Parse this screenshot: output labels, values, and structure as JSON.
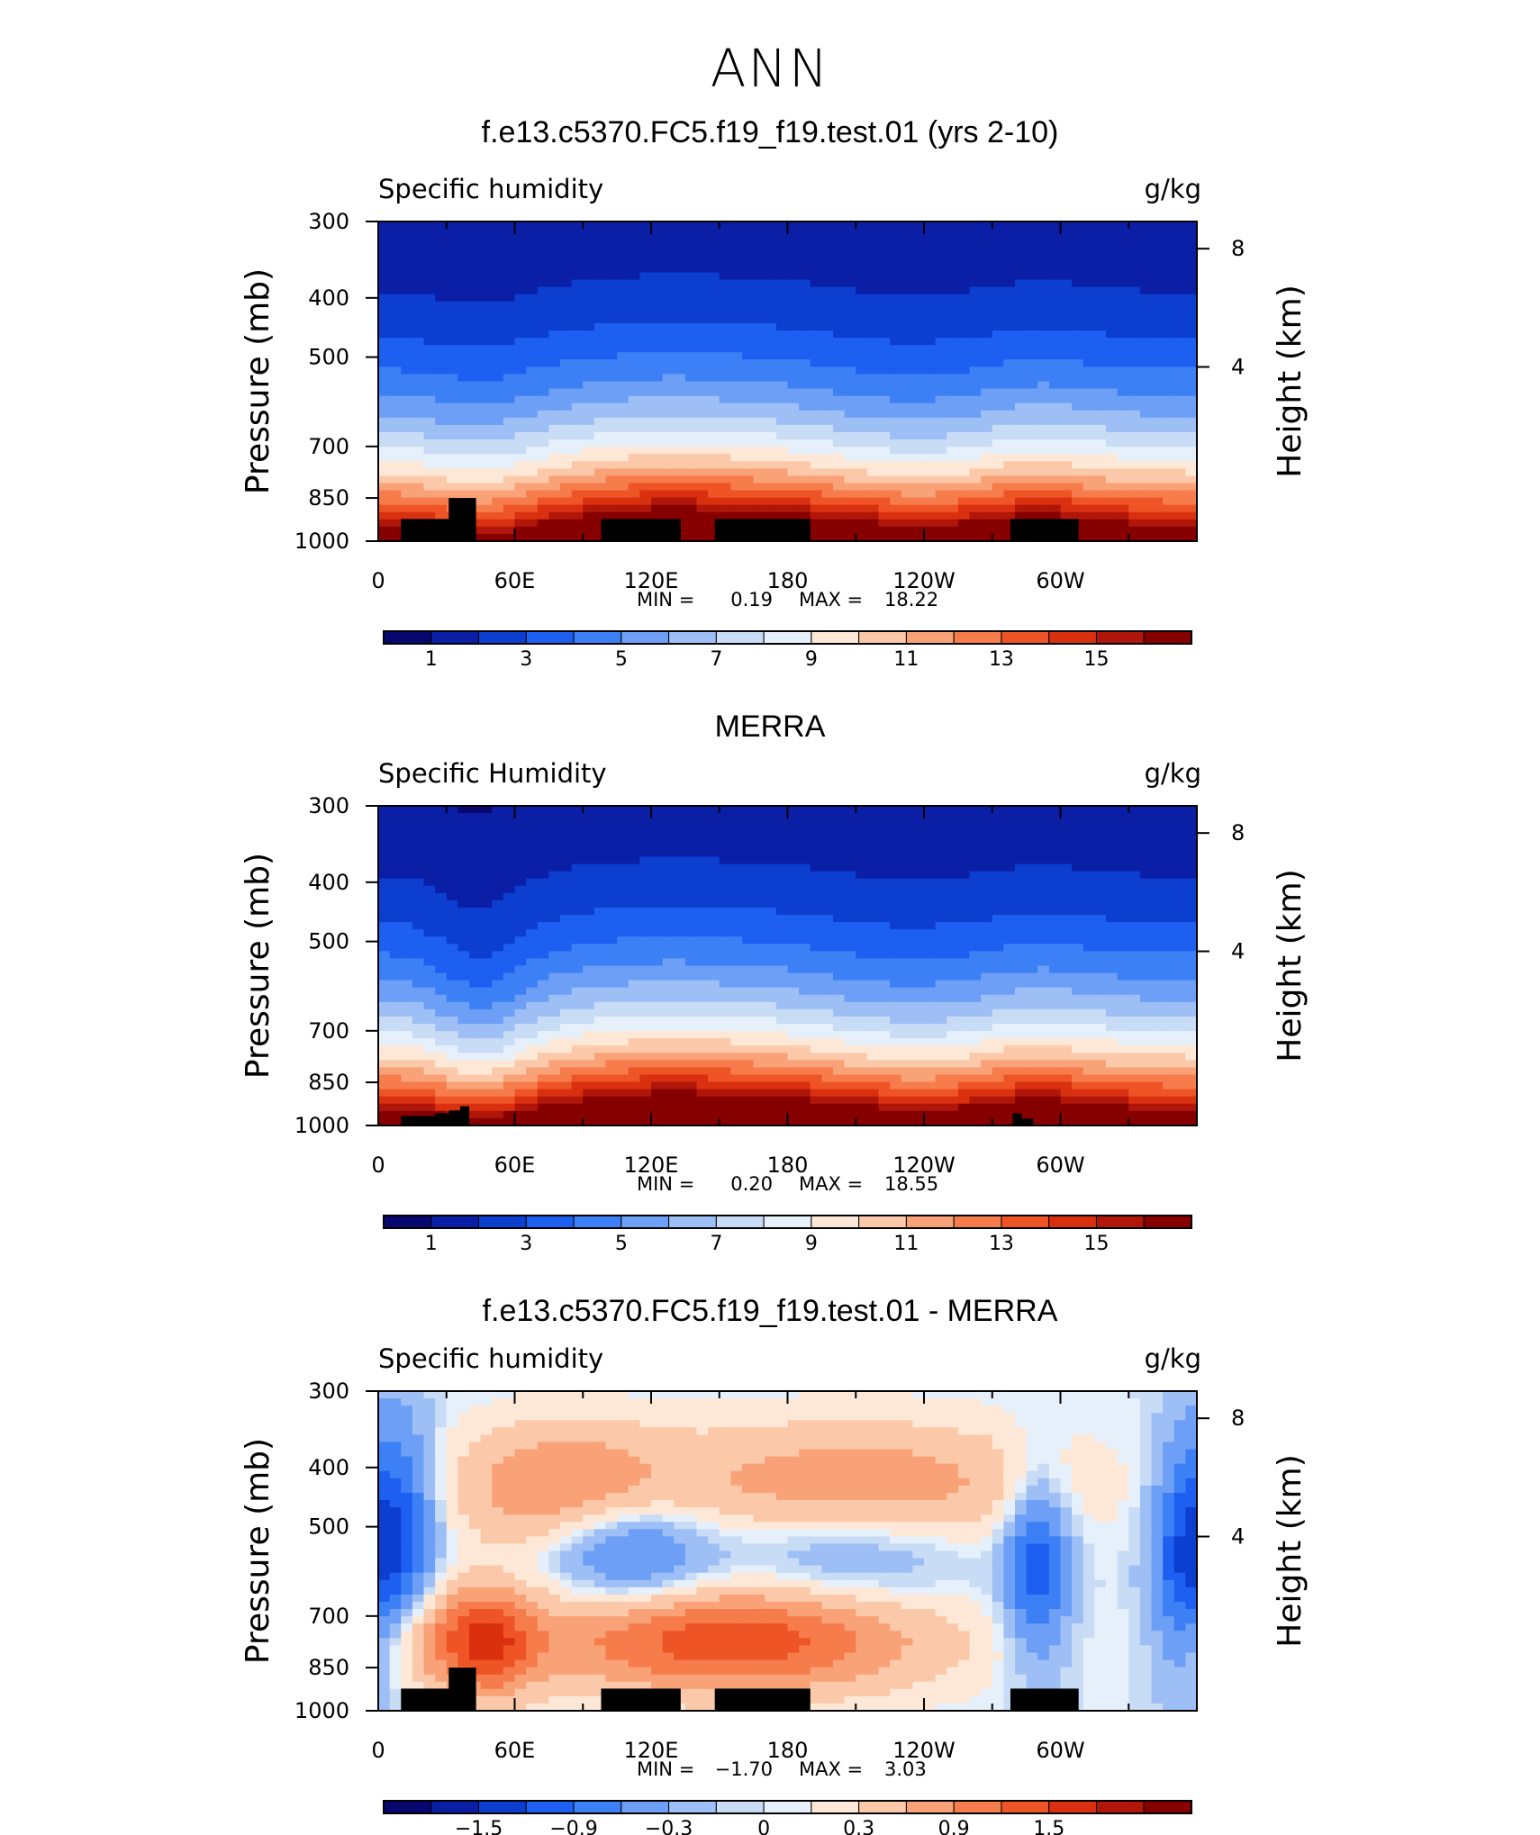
{
  "page": {
    "main_title": "ANN"
  },
  "colors": {
    "palette": [
      "#08066f",
      "#0a1fa6",
      "#0c3ed0",
      "#1d5ff0",
      "#3d80f6",
      "#6c9ff5",
      "#9dbff5",
      "#c8dcf6",
      "#e6f0fb",
      "#fde8d7",
      "#fbc9a9",
      "#f9a277",
      "#f67c4c",
      "#ee5425",
      "#d9300f",
      "#b01609",
      "#860000"
    ],
    "land": "#000000"
  },
  "chart_data": [
    {
      "type": "heatmap",
      "title": "f.e13.c5370.FC5.f19_f19.test.01 (yrs 2-10)",
      "left_label": "Specific humidity",
      "right_label": "g/kg",
      "ylabel": "Pressure (mb)",
      "y2label": "Height (km)",
      "x_ticklabels": [
        "0",
        "60E",
        "120E",
        "180",
        "120W",
        "60W"
      ],
      "y_ticklabels": [
        "300",
        "400",
        "500",
        "700",
        "850",
        "1000"
      ],
      "y2_ticklabels": [
        "8",
        "4"
      ],
      "ylim": [
        1000,
        300
      ],
      "min_label": "MIN =",
      "min_value": "0.19",
      "max_label": "MAX =",
      "max_value": "18.22",
      "colorbar_labels": [
        "1",
        "3",
        "5",
        "7",
        "9",
        "11",
        "13",
        "15"
      ],
      "contour_levels": [
        1,
        2,
        3,
        4,
        5,
        6,
        7,
        8,
        9,
        10,
        11,
        12,
        13,
        14,
        15,
        16
      ],
      "land_blocks": [
        [
          10,
          43,
          920
        ],
        [
          31,
          43,
          850
        ],
        [
          98,
          133,
          920
        ],
        [
          148,
          190,
          920
        ],
        [
          278,
          308,
          920
        ]
      ]
    },
    {
      "type": "heatmap",
      "title": "MERRA",
      "left_label": "Specific Humidity",
      "right_label": "g/kg",
      "ylabel": "Pressure (mb)",
      "y2label": "Height (km)",
      "x_ticklabels": [
        "0",
        "60E",
        "120E",
        "180",
        "120W",
        "60W"
      ],
      "y_ticklabels": [
        "300",
        "400",
        "500",
        "700",
        "850",
        "1000"
      ],
      "y2_ticklabels": [
        "8",
        "4"
      ],
      "ylim": [
        1000,
        300
      ],
      "min_label": "MIN =",
      "min_value": "0.20",
      "max_label": "MAX =",
      "max_value": "18.55",
      "colorbar_labels": [
        "1",
        "3",
        "5",
        "7",
        "9",
        "11",
        "13",
        "15"
      ],
      "contour_levels": [
        1,
        2,
        3,
        4,
        5,
        6,
        7,
        8,
        9,
        10,
        11,
        12,
        13,
        14,
        15,
        16
      ],
      "land_blocks": [
        [
          10,
          25,
          965
        ],
        [
          25,
          31,
          955
        ],
        [
          31,
          36,
          945
        ],
        [
          36,
          40,
          930
        ],
        [
          279,
          283,
          955
        ],
        [
          283,
          288,
          975
        ]
      ]
    },
    {
      "type": "heatmap",
      "title": "f.e13.c5370.FC5.f19_f19.test.01 - MERRA",
      "left_label": "Specific humidity",
      "right_label": "g/kg",
      "ylabel": "Pressure (mb)",
      "y2label": "Height (km)",
      "x_ticklabels": [
        "0",
        "60E",
        "120E",
        "180",
        "120W",
        "60W"
      ],
      "y_ticklabels": [
        "300",
        "400",
        "500",
        "700",
        "850",
        "1000"
      ],
      "y2_ticklabels": [
        "8",
        "4"
      ],
      "ylim": [
        1000,
        300
      ],
      "min_label": "MIN =",
      "min_value": "−1.70",
      "max_label": "MAX =",
      "max_value": "3.03",
      "colorbar_labels": [
        "−1.5",
        "−0.9",
        "−0.3",
        "0",
        "0.3",
        "0.9",
        "1.5"
      ],
      "contour_levels": [
        -1.8,
        -1.5,
        -1.2,
        -0.9,
        -0.6,
        -0.3,
        -0.1,
        0,
        0.1,
        0.3,
        0.6,
        0.9,
        1.2,
        1.5,
        1.8,
        2.1
      ],
      "land_blocks": [
        [
          10,
          43,
          920
        ],
        [
          31,
          43,
          850
        ],
        [
          98,
          133,
          920
        ],
        [
          148,
          190,
          920
        ],
        [
          278,
          308,
          920
        ]
      ]
    }
  ]
}
